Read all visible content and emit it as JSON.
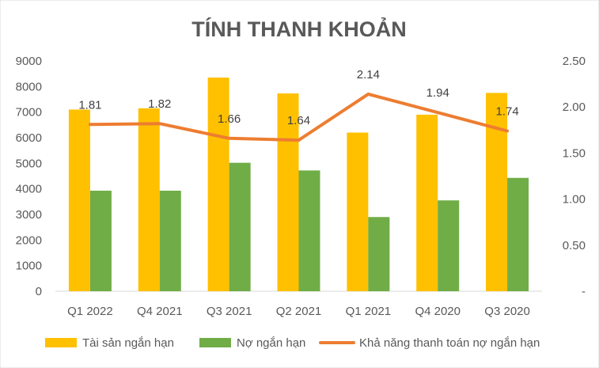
{
  "chart_data": {
    "type": "bar",
    "title": "TÍNH THANH KHOẢN",
    "categories": [
      "Q1 2022",
      "Q4 2021",
      "Q3 2021",
      "Q2 2021",
      "Q1 2021",
      "Q4 2020",
      "Q3 2020"
    ],
    "series": [
      {
        "name": "Tài sản ngắn hạn",
        "type": "bar",
        "axis": "left",
        "color": "#FFC000",
        "values": [
          7100,
          7150,
          8350,
          7730,
          6200,
          6900,
          7750
        ]
      },
      {
        "name": "Nợ ngắn hạn",
        "type": "bar",
        "axis": "left",
        "color": "#70AD47",
        "values": [
          3930,
          3930,
          5020,
          4720,
          2900,
          3550,
          4430
        ]
      },
      {
        "name": "Khả năng thanh toán nợ ngắn hạn",
        "type": "line",
        "axis": "right",
        "color": "#ED7D31",
        "values": [
          1.81,
          1.82,
          1.66,
          1.64,
          2.14,
          1.94,
          1.74
        ],
        "labels": [
          "1.81",
          "1.82",
          "1.66",
          "1.64",
          "2.14",
          "1.94",
          "1.74"
        ]
      }
    ],
    "y_left": {
      "min": 0,
      "max": 9000,
      "ticks": [
        "0",
        "1000",
        "2000",
        "3000",
        "4000",
        "5000",
        "6000",
        "7000",
        "8000",
        "9000"
      ]
    },
    "y_right": {
      "min": 0,
      "max": 2.5,
      "ticks": [
        "-",
        "0.50",
        "1.00",
        "1.50",
        "2.00",
        "2.50"
      ]
    },
    "grid": false,
    "legend": "bottom"
  }
}
